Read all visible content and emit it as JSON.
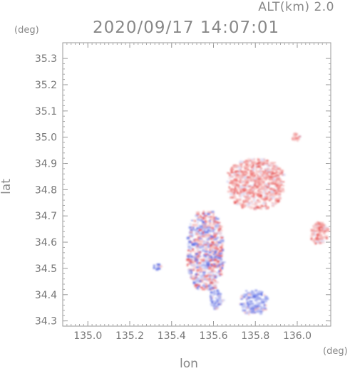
{
  "header": {
    "alt_label": "ALT(km) 2.0",
    "timestamp": "2020/09/17 14:07:01",
    "y_unit": "(deg)",
    "x_unit": "(deg)"
  },
  "chart_data": {
    "type": "heatmap",
    "title": "2020/09/17 14:07:01",
    "subtitle": "ALT(km) 2.0",
    "xlabel": "lon",
    "ylabel": "lat",
    "x_unit": "(deg)",
    "y_unit": "(deg)",
    "xlim": [
      134.88,
      136.16
    ],
    "ylim": [
      34.28,
      35.36
    ],
    "xticks": [
      135.0,
      135.2,
      135.4,
      135.6,
      135.8,
      136.0
    ],
    "xtick_labels": [
      "135.0",
      "135.2",
      "135.4",
      "135.6",
      "135.8",
      "136.0"
    ],
    "yticks": [
      34.3,
      34.4,
      34.5,
      34.6,
      34.7,
      34.8,
      34.9,
      35.0,
      35.1,
      35.2,
      35.3
    ],
    "ytick_labels": [
      "34.3",
      "34.4",
      "34.5",
      "34.6",
      "34.7",
      "34.8",
      "34.9",
      "35.0",
      "35.1",
      "35.2",
      "35.3"
    ],
    "grid": false,
    "colors": {
      "positive": "#ee6666",
      "negative": "#6f7fe8",
      "neutral": "#d8dcf6"
    },
    "regions": [
      {
        "name": "main-cluster",
        "lon": [
          135.47,
          135.64
        ],
        "lat": [
          34.42,
          34.72
        ],
        "value": "mixed"
      },
      {
        "name": "north-east-cluster",
        "lon": [
          135.66,
          135.93
        ],
        "lat": [
          34.73,
          34.92
        ],
        "value": "positive"
      },
      {
        "name": "south-blob-1",
        "lon": [
          135.57,
          135.64
        ],
        "lat": [
          34.35,
          34.42
        ],
        "value": "negative"
      },
      {
        "name": "south-blob-2",
        "lon": [
          135.72,
          135.85
        ],
        "lat": [
          34.33,
          34.42
        ],
        "value": "negative"
      },
      {
        "name": "east-blob",
        "lon": [
          136.06,
          136.14
        ],
        "lat": [
          34.6,
          34.68
        ],
        "value": "positive"
      },
      {
        "name": "north-speck",
        "lon": [
          135.97,
          136.01
        ],
        "lat": [
          34.99,
          35.02
        ],
        "value": "positive"
      },
      {
        "name": "west-blob",
        "lon": [
          135.31,
          135.35
        ],
        "lat": [
          34.5,
          34.52
        ],
        "value": "negative"
      }
    ]
  }
}
